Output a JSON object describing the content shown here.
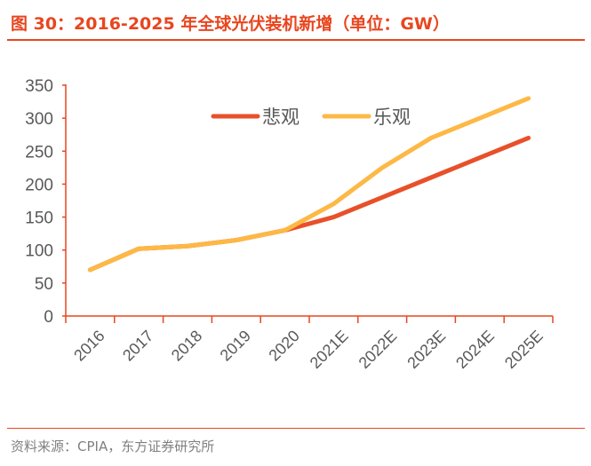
{
  "title": "图 30：2016-2025 年全球光伏装机新增（单位：GW）",
  "source": "资料来源：CPIA，东方证券研究所",
  "colors": {
    "accent": "#e8461f",
    "pessimistic": "#e8502a",
    "optimistic": "#fdb845",
    "text": "#595959"
  },
  "chart_data": {
    "type": "line",
    "categories": [
      "2016",
      "2017",
      "2018",
      "2019",
      "2020",
      "2021E",
      "2022E",
      "2023E",
      "2024E",
      "2025E"
    ],
    "series": [
      {
        "name": "悲观",
        "values": [
          70,
          102,
          106,
          115,
          130,
          150,
          180,
          210,
          240,
          270
        ]
      },
      {
        "name": "乐观",
        "values": [
          70,
          102,
          106,
          115,
          130,
          170,
          225,
          270,
          300,
          330
        ]
      }
    ],
    "yticks": [
      "0",
      "50",
      "100",
      "150",
      "200",
      "250",
      "300",
      "350"
    ],
    "ylim": [
      0,
      350
    ],
    "grid": false,
    "legend": "top-center"
  }
}
